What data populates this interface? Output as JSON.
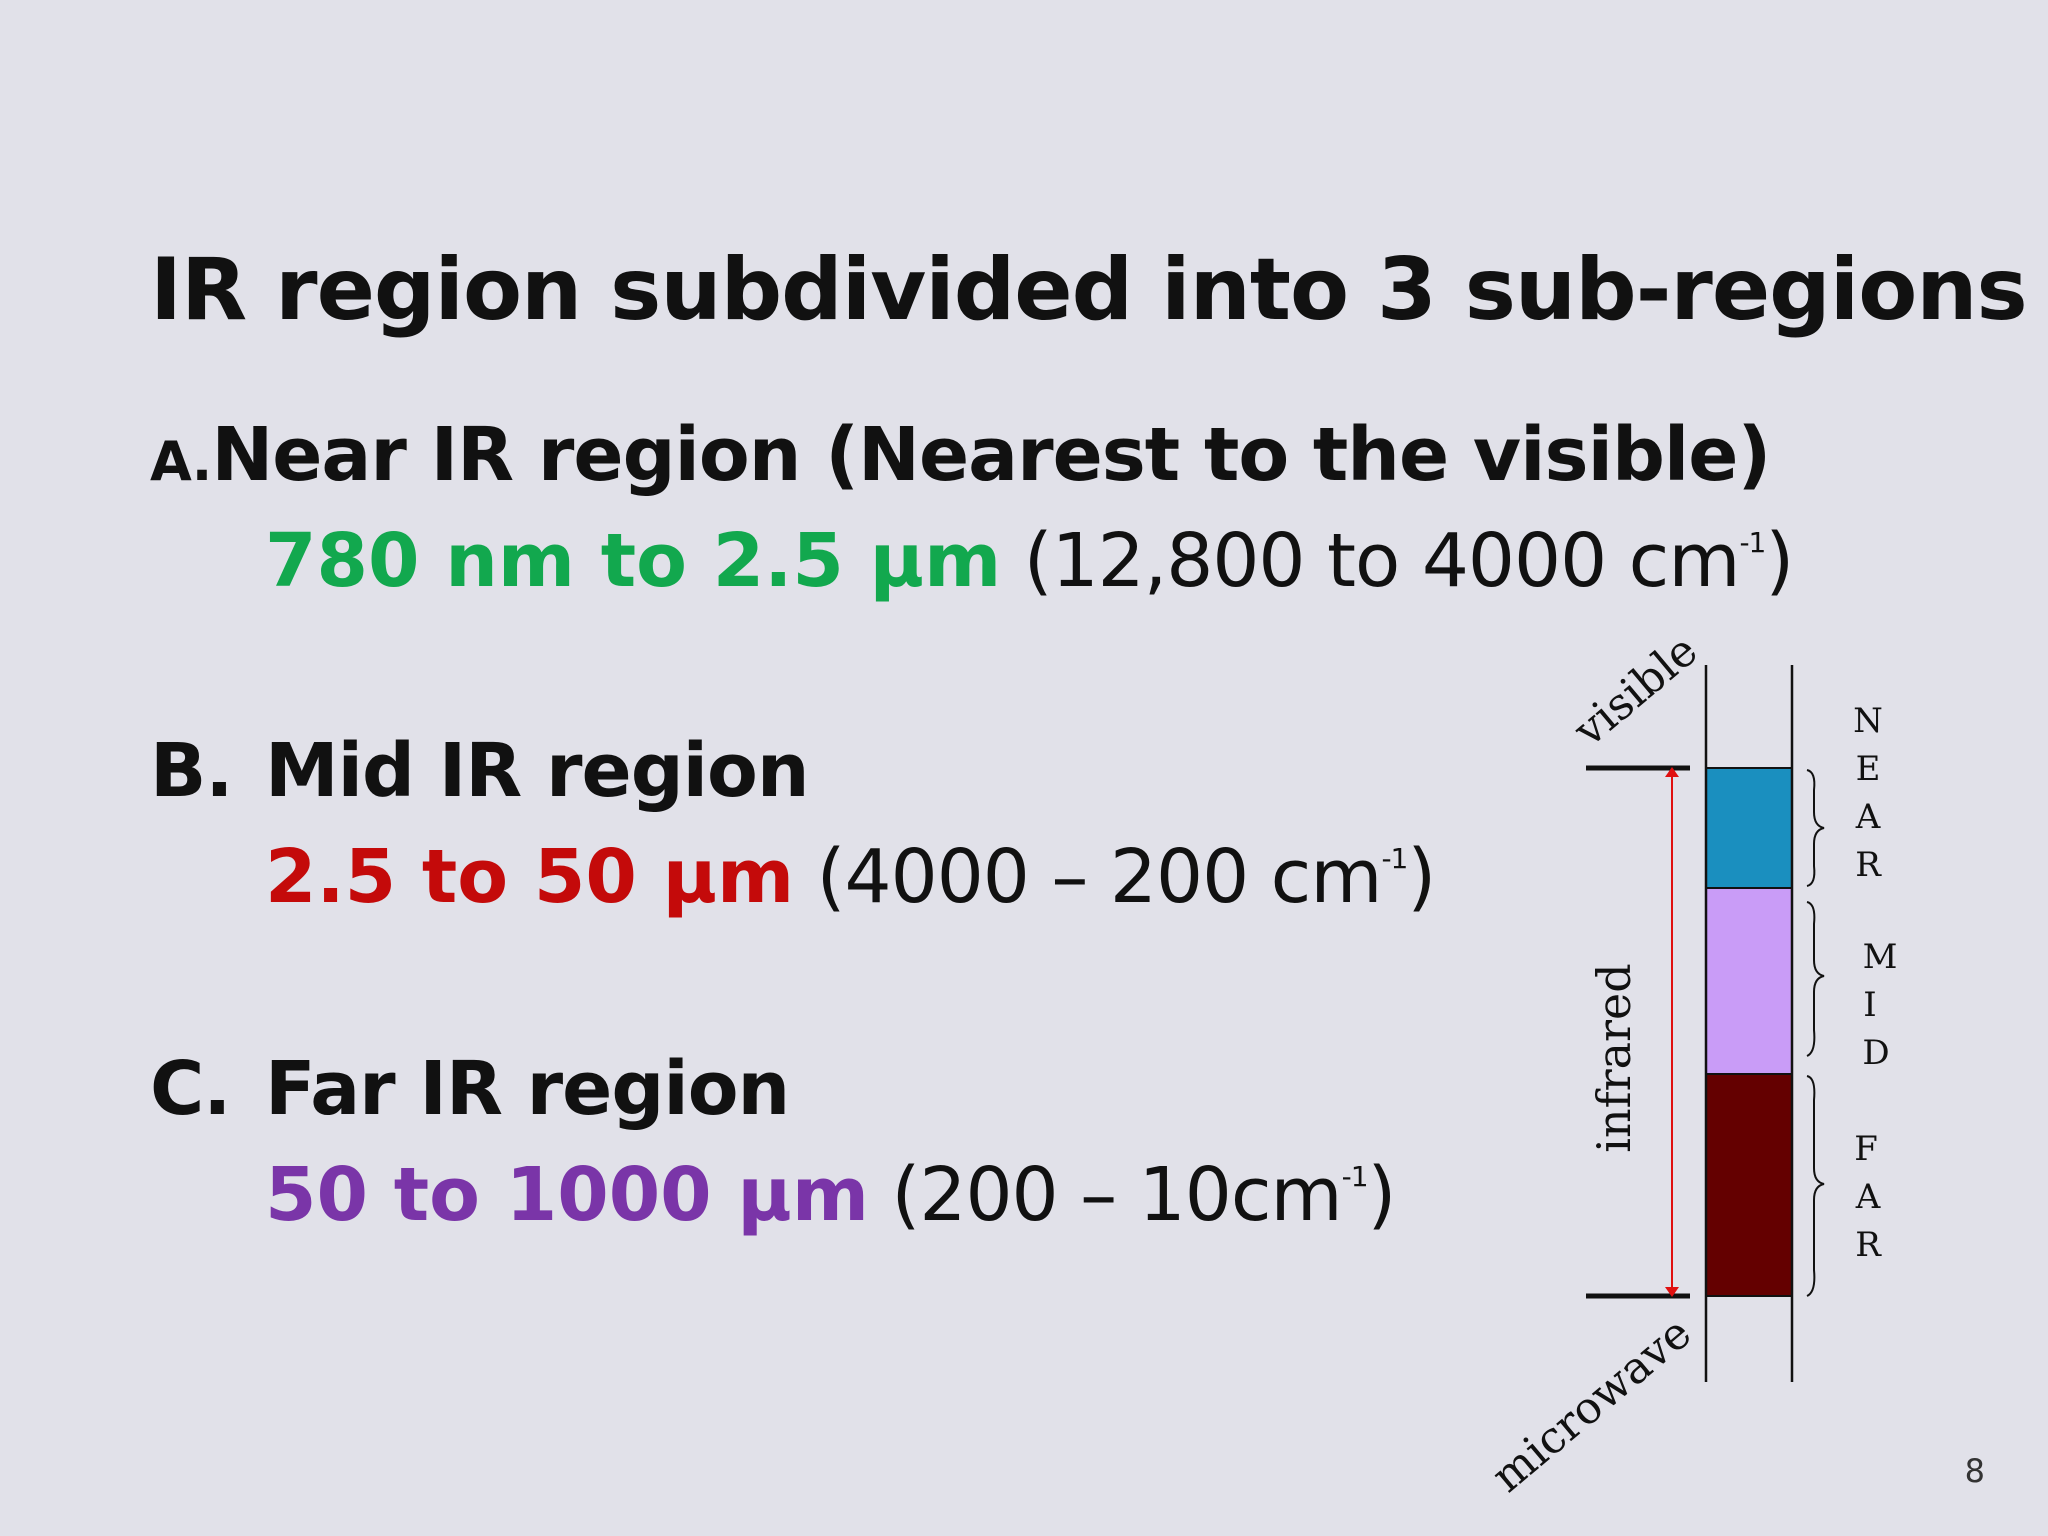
{
  "title": "IR region subdivided into 3 sub-regions",
  "items": [
    {
      "letter": "A.",
      "heading": "Near IR region (Nearest to the visible)",
      "range": "780 nm to 2.5 µm",
      "wavenumber_text": " (12,800 to 4000 cm",
      "sup": "-1",
      "close": ")",
      "color": "#12a84e"
    },
    {
      "letter": "B.",
      "heading": "Mid IR region",
      "range": "2.5 to 50 µm",
      "wavenumber_text": " (4000 – 200 cm",
      "sup": "-1",
      "close": ")",
      "color": "#c40a0a"
    },
    {
      "letter": "C.",
      "heading": "Far IR region",
      "range": "50 to 1000 µm",
      "wavenumber_text": " (200 – 10cm",
      "sup": "-1",
      "close": ")",
      "color": "#7a35a8"
    }
  ],
  "diagram": {
    "label_visible": "visible",
    "label_infrared": "infrared",
    "label_microwave": "microwave",
    "bands": [
      {
        "letters": [
          "N",
          "E",
          "A",
          "R"
        ],
        "color": "#1a8fbf"
      },
      {
        "letters": [
          "M",
          "I",
          "D"
        ],
        "color": "#c99cf7"
      },
      {
        "letters": [
          "F",
          "A",
          "R"
        ],
        "color": "#640000"
      }
    ],
    "arrow_color": "#e01010"
  },
  "page_number": "8"
}
